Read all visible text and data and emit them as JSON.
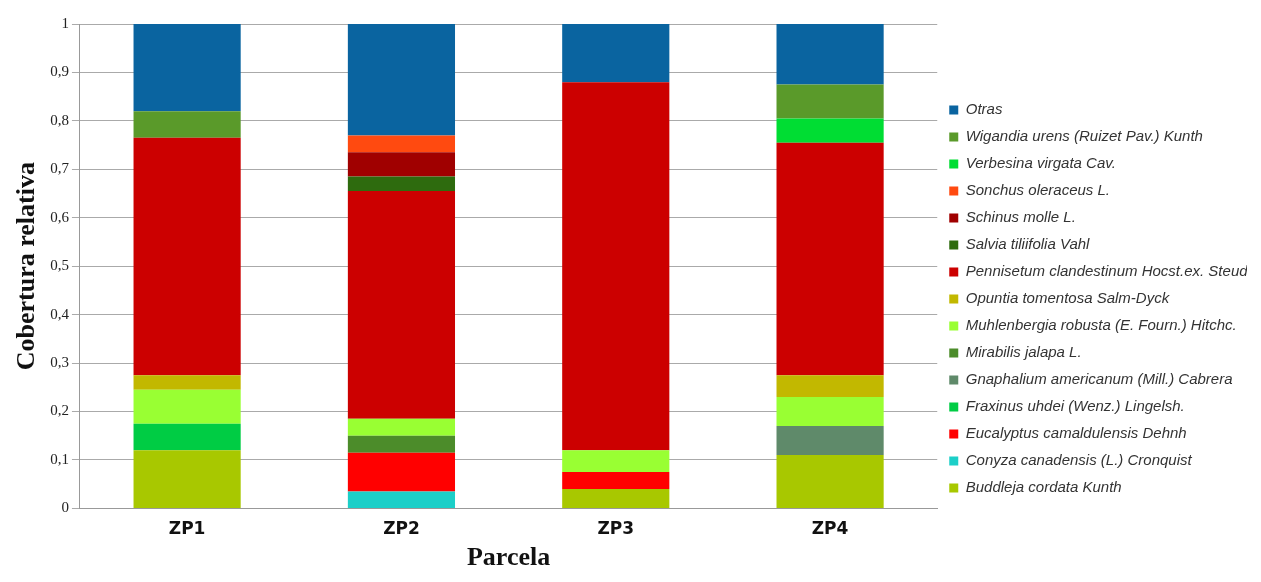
{
  "chart_data": {
    "type": "bar",
    "stacked": true,
    "xlabel": "Parcela",
    "ylabel": "Cobertura relativa",
    "categories": [
      "ZP1",
      "ZP2",
      "ZP3",
      "ZP4"
    ],
    "ylim": [
      0,
      1
    ],
    "yticks": [
      {
        "value": 0,
        "label": "0"
      },
      {
        "value": 0.1,
        "label": "0,1"
      },
      {
        "value": 0.2,
        "label": "0,2"
      },
      {
        "value": 0.3,
        "label": "0,3"
      },
      {
        "value": 0.4,
        "label": "0,4"
      },
      {
        "value": 0.5,
        "label": "0,5"
      },
      {
        "value": 0.6,
        "label": "0,6"
      },
      {
        "value": 0.7,
        "label": "0,7"
      },
      {
        "value": 0.8,
        "label": "0,8"
      },
      {
        "value": 0.9,
        "label": "0,9"
      },
      {
        "value": 1,
        "label": "1"
      }
    ],
    "grid": "y",
    "legend": "right",
    "series": [
      {
        "name": "Buddleja cordata Kunth",
        "color": "#a8c800",
        "values": [
          0.12,
          null,
          0.04,
          0.11
        ]
      },
      {
        "name": "Conyza canadensis (L.) Cronquist",
        "color": "#1ccfc8",
        "values": [
          null,
          0.035,
          null,
          null
        ]
      },
      {
        "name": "Eucalyptus camaldulensis Dehnh",
        "color": "#ff0000",
        "values": [
          null,
          0.08,
          0.035,
          null
        ]
      },
      {
        "name": "Fraxinus uhdei (Wenz.) Lingelsh.",
        "color": "#00cc44",
        "values": [
          0.055,
          null,
          null,
          null
        ]
      },
      {
        "name": "Gnaphalium americanum (Mill.) Cabrera",
        "color": "#5f8a6a",
        "values": [
          null,
          null,
          null,
          0.06
        ]
      },
      {
        "name": "Mirabilis jalapa L.",
        "color": "#4c8c2a",
        "values": [
          null,
          0.035,
          null,
          null
        ]
      },
      {
        "name": "Muhlenbergia robusta (E. Fourn.) Hitchc.",
        "color": "#99ff33",
        "values": [
          0.07,
          0.035,
          0.045,
          0.06
        ]
      },
      {
        "name": "Opuntia tomentosa Salm-Dyck",
        "color": "#c2b800",
        "values": [
          0.03,
          null,
          null,
          0.045
        ]
      },
      {
        "name": "Pennisetum clandestinum Hocst.ex. Steud",
        "color": "#cc0000",
        "values": [
          0.49,
          0.47,
          0.76,
          0.48
        ]
      },
      {
        "name": "Salvia tiliifolia Vahl",
        "color": "#2e6b0e",
        "values": [
          null,
          0.03,
          null,
          null
        ]
      },
      {
        "name": "Schinus molle L.",
        "color": "#a00000",
        "values": [
          null,
          0.05,
          null,
          null
        ]
      },
      {
        "name": "Sonchus oleraceus L.",
        "color": "#ff4a10",
        "values": [
          null,
          0.035,
          null,
          null
        ]
      },
      {
        "name": "Verbesina virgata Cav.",
        "color": "#00dd33",
        "values": [
          null,
          null,
          null,
          0.05
        ]
      },
      {
        "name": "Wigandia urens (Ruizet Pav.) Kunth",
        "color": "#5a9a2a",
        "values": [
          0.055,
          null,
          null,
          0.07
        ]
      },
      {
        "name": "Otras",
        "color": "#0a64a0",
        "values": [
          0.18,
          0.23,
          0.12,
          0.125
        ]
      }
    ]
  }
}
